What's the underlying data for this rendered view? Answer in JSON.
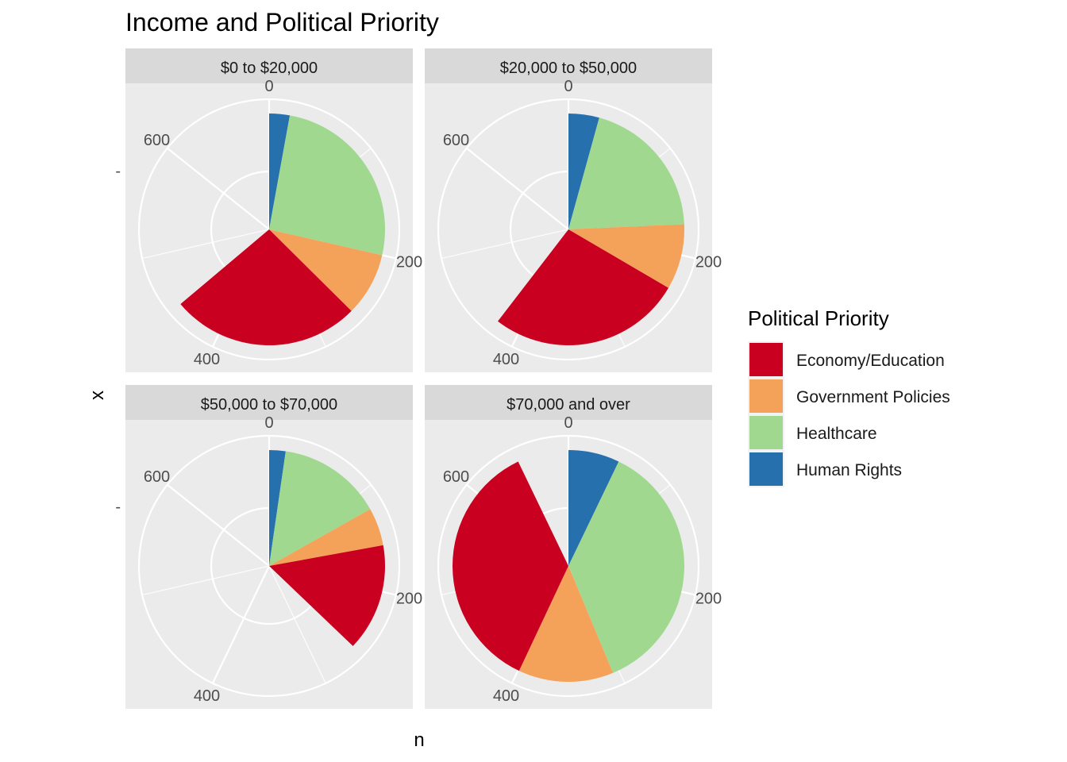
{
  "chart_data": {
    "type": "pie",
    "coord": "polar",
    "title": "Income and Political Priority",
    "xlabel": "n",
    "ylabel": "x",
    "y_tick": "-",
    "radial_ticks": [
      "0",
      "200",
      "400",
      "600"
    ],
    "radial_tick_values": [
      0,
      200,
      400,
      600
    ],
    "theta_max": 700,
    "categories": [
      "Economy/Education",
      "Government Policies",
      "Healthcare",
      "Human Rights"
    ],
    "colors": [
      "#CA0020",
      "#F4A25A",
      "#A0D890",
      "#2670AE"
    ],
    "legend": {
      "title": "Political Priority",
      "position": "right"
    },
    "panels": [
      {
        "label": "$0 to $20,000",
        "values": [
          185,
          62,
          180,
          20
        ]
      },
      {
        "label": "$20,000 to $50,000",
        "values": [
          189,
          64,
          140,
          30
        ]
      },
      {
        "label": "$50,000 to $70,000",
        "values": [
          105,
          37,
          102,
          16
        ]
      },
      {
        "label": "$70,000 and over",
        "values": [
          251,
          93,
          256,
          50
        ]
      }
    ]
  }
}
